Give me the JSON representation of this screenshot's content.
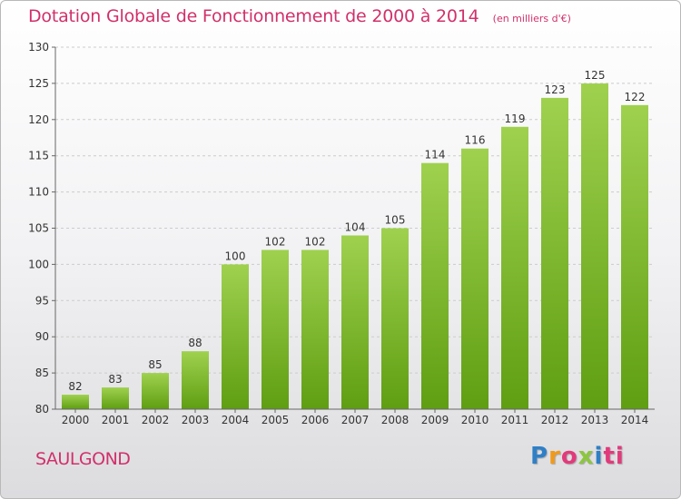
{
  "header": {
    "title": "Dotation Globale de Fonctionnement de 2000 à 2014",
    "unit": "(en milliers d'€)"
  },
  "footer": {
    "city": "SAULGOND",
    "brand_letters": [
      "P",
      "r",
      "o",
      "x",
      "i",
      "ti"
    ]
  },
  "colors": {
    "accent": "#d1306a",
    "bar_light": "#9fd14f",
    "bar_dark": "#5f9e12",
    "axis": "#666666",
    "grid": "#cccccc"
  },
  "chart_data": {
    "type": "bar",
    "title": "Dotation Globale de Fonctionnement de 2000 à 2014",
    "subtitle": "(en milliers d'€)",
    "xlabel": "",
    "ylabel": "",
    "categories": [
      "2000",
      "2001",
      "2002",
      "2003",
      "2004",
      "2005",
      "2006",
      "2007",
      "2008",
      "2009",
      "2010",
      "2011",
      "2012",
      "2013",
      "2014"
    ],
    "values": [
      82,
      83,
      85,
      88,
      100,
      102,
      102,
      104,
      105,
      114,
      116,
      119,
      123,
      125,
      122
    ],
    "ylim": [
      80,
      130
    ],
    "yticks": [
      80,
      85,
      90,
      95,
      100,
      105,
      110,
      115,
      120,
      125,
      130
    ],
    "grid": true,
    "legend": "none"
  }
}
